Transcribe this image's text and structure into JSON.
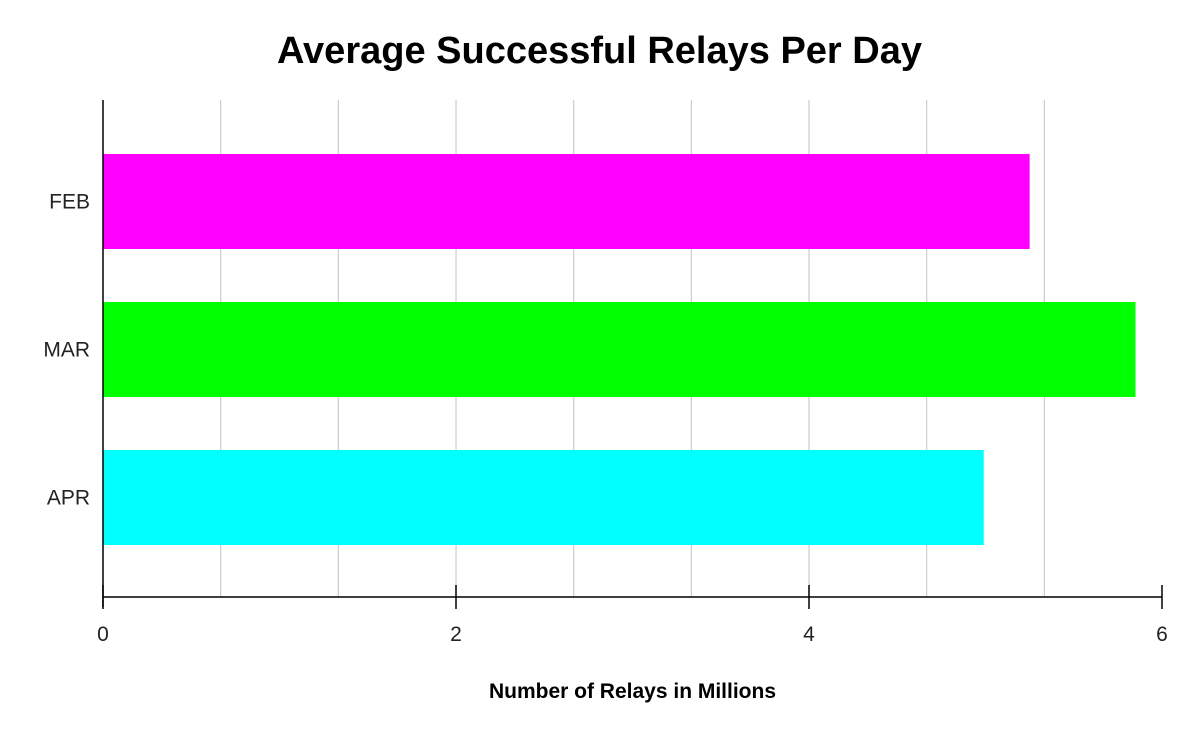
{
  "chart_data": {
    "type": "bar",
    "orientation": "horizontal",
    "title": "Average Successful Relays Per Day",
    "xlabel": "Number of Relays in Millions",
    "ylabel": "",
    "categories": [
      "FEB",
      "MAR",
      "APR"
    ],
    "values": [
      5.25,
      5.85,
      4.99
    ],
    "colors": [
      "#ff00ff",
      "#00ff00",
      "#00ffff"
    ],
    "xlim": [
      0,
      6
    ],
    "xticks": [
      0,
      2,
      4,
      6
    ],
    "minor_grid_step": 0.6667,
    "grid": true,
    "legend": "none"
  }
}
